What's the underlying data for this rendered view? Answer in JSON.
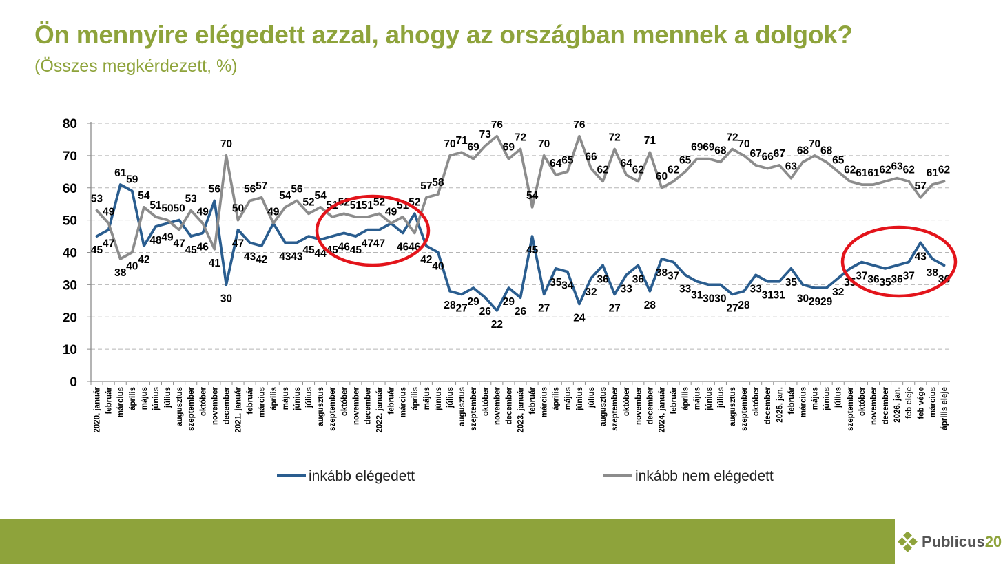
{
  "title": "Ön mennyire elégedett azzal, ahogy az országban mennek a dolgok?",
  "subtitle": "(Összes megkérdezett, %)",
  "colors": {
    "accent": "#8ea33b",
    "satisfied": "#2a5d8f",
    "unsatisfied": "#8c8c8c",
    "highlight_circle": "#e3141b"
  },
  "logo": {
    "name": "Publicus",
    "number": "20",
    "icon": "diamond-logo-icon"
  },
  "chart_data": {
    "type": "line",
    "ylim": [
      0,
      80
    ],
    "yticks": [
      "0",
      "10",
      "20",
      "30",
      "40",
      "50",
      "60",
      "70",
      "80"
    ],
    "grid": "horizontal dashed",
    "legend_position": "bottom",
    "categories": [
      "2020. január",
      "február",
      "március",
      "április",
      "május",
      "június",
      "július",
      "augusztus",
      "szeptember",
      "október",
      "november",
      "december",
      "2021. január",
      "február",
      "március",
      "április",
      "május",
      "június",
      "július",
      "augusztus",
      "szeptember",
      "október",
      "november",
      "december",
      "2022. január",
      "február",
      "március",
      "április",
      "május",
      "június",
      "július",
      "augusztus",
      "szeptember",
      "október",
      "november",
      "december",
      "2023. január",
      "február",
      "március",
      "április",
      "május",
      "június",
      "július",
      "augusztus",
      "szeptember",
      "október",
      "november",
      "december",
      "2024. január",
      "február",
      "április",
      "május",
      "június",
      "július",
      "augusztus",
      "szeptember",
      "október",
      "december",
      "2025. jan.",
      "február",
      "március",
      "május",
      "június",
      "július",
      "szeptember",
      "október",
      "november",
      "december",
      "2026. jan.",
      "feb eleje",
      "feb vége",
      "március",
      "április eleje"
    ],
    "series": [
      {
        "name": "inkább elégedett",
        "values": [
          45,
          47,
          61,
          59,
          42,
          48,
          49,
          50,
          45,
          46,
          56,
          30,
          47,
          43,
          42,
          49,
          43,
          43,
          45,
          44,
          45,
          46,
          45,
          47,
          47,
          49,
          46,
          52,
          42,
          40,
          28,
          27,
          29,
          26,
          22,
          29,
          26,
          45,
          27,
          35,
          34,
          24,
          32,
          36,
          27,
          33,
          36,
          28,
          38,
          37,
          33,
          31,
          30,
          30,
          27,
          28,
          33,
          31,
          31,
          35,
          30,
          29,
          29,
          32,
          35,
          37,
          36,
          35,
          36,
          37,
          43,
          38,
          36
        ]
      },
      {
        "name": "inkább nem elégedett",
        "values": [
          53,
          49,
          38,
          40,
          54,
          51,
          50,
          47,
          53,
          49,
          41,
          70,
          50,
          56,
          57,
          49,
          54,
          56,
          52,
          54,
          51,
          52,
          51,
          51,
          52,
          49,
          51,
          46,
          57,
          58,
          70,
          71,
          69,
          73,
          76,
          69,
          72,
          54,
          70,
          64,
          65,
          76,
          66,
          62,
          72,
          64,
          62,
          71,
          60,
          62,
          65,
          69,
          69,
          68,
          72,
          70,
          67,
          66,
          67,
          63,
          68,
          70,
          68,
          65,
          62,
          61,
          61,
          62,
          63,
          62,
          57,
          61,
          62
        ]
      }
    ],
    "annotations": [
      "red ellipse around 2021 autumn – 2022 spring",
      "red ellipse around 2025 autumn – 2026 spring"
    ]
  }
}
